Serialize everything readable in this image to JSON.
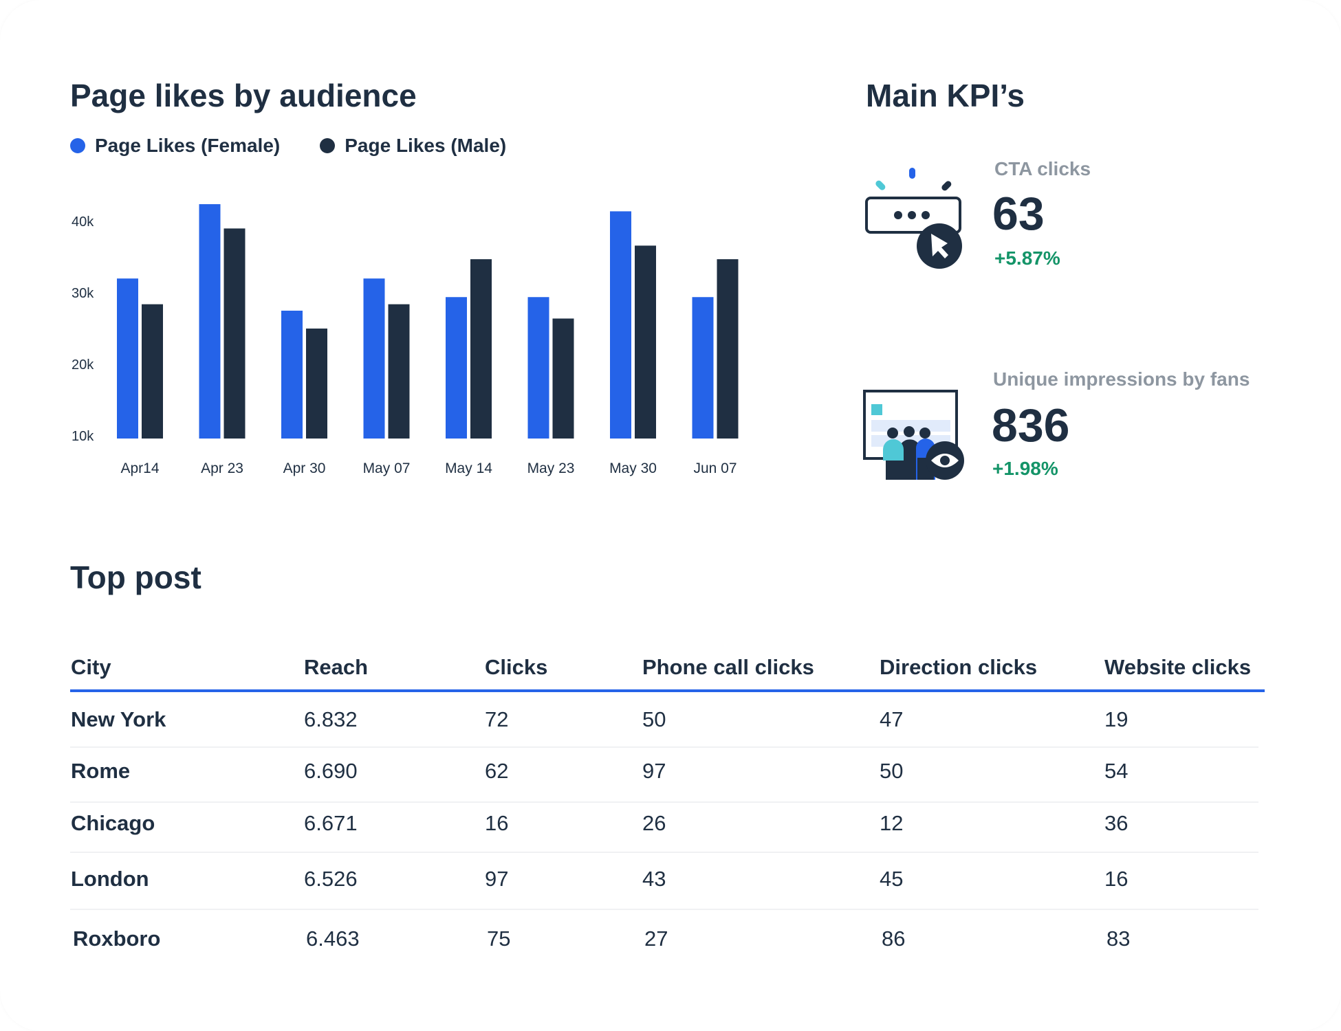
{
  "chart_section": {
    "title": "Page likes by audience"
  },
  "chart_data": {
    "type": "bar",
    "title": "Page likes by audience",
    "categories": [
      "Apr14",
      "Apr 23",
      "Apr 30",
      "May 07",
      "May 14",
      "May 23",
      "May 30",
      "Jun 07"
    ],
    "series": [
      {
        "name": "Page Likes (Female)",
        "color": "#2563e8",
        "values": [
          32000,
          42400,
          27500,
          32000,
          29400,
          29400,
          41400,
          29400
        ]
      },
      {
        "name": "Page Likes (Male)",
        "color": "#1f2f42",
        "values": [
          28400,
          39000,
          25000,
          28400,
          34700,
          26400,
          36600,
          34700
        ]
      }
    ],
    "yticks": [
      10000,
      20000,
      30000,
      40000
    ],
    "ytick_labels": [
      "10k",
      "20k",
      "30k",
      "40k"
    ],
    "ylim": [
      10000,
      43000
    ],
    "xlabel": "",
    "ylabel": "",
    "grid": false,
    "legend": "top-left"
  },
  "kpi": {
    "title": "Main KPI’s",
    "items": [
      {
        "label": "CTA clicks",
        "value": "63",
        "delta": "+5.87%",
        "icon": "cursor-click-icon"
      },
      {
        "label": "Unique impressions by fans",
        "value": "836",
        "delta": "+1.98%",
        "icon": "audience-eye-icon"
      }
    ]
  },
  "table": {
    "title": "Top post",
    "columns": [
      "City",
      "Reach",
      "Clicks",
      "Phone call clicks",
      "Direction clicks",
      "Website clicks"
    ],
    "rows": [
      [
        "New York",
        "6.832",
        "72",
        "50",
        "47",
        "19"
      ],
      [
        "Rome",
        "6.690",
        "62",
        "97",
        "50",
        "54"
      ],
      [
        "Chicago",
        "6.671",
        "16",
        "26",
        "12",
        "36"
      ],
      [
        "London",
        "6.526",
        "97",
        "43",
        "45",
        "16"
      ],
      [
        "Roxboro",
        "6.463",
        "75",
        "27",
        "86",
        "83"
      ]
    ]
  },
  "colors": {
    "accent": "#2563e8",
    "dark": "#1f2f42",
    "positive": "#149468",
    "muted": "#8d96a0",
    "teal": "#4fc8d6"
  }
}
